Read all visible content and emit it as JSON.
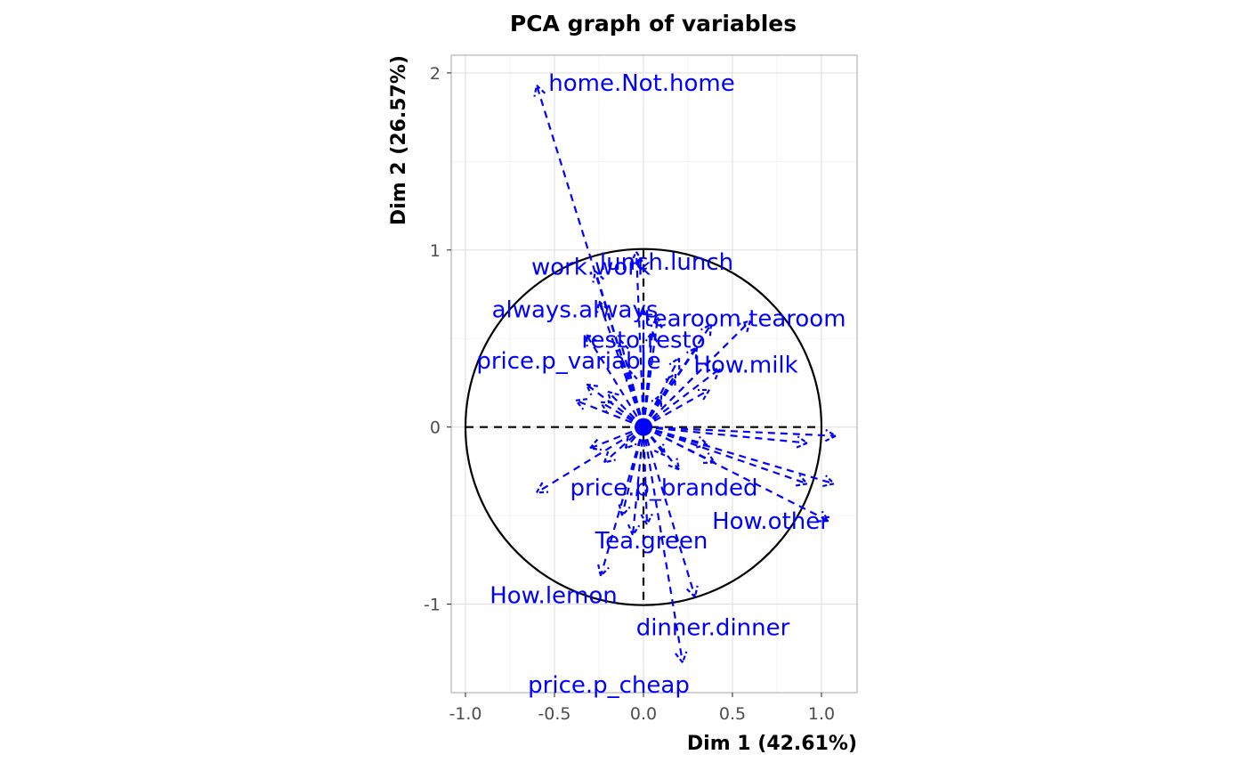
{
  "chart_data": {
    "type": "scatter",
    "title": "PCA graph of variables",
    "xlabel": "Dim 1 (42.61%)",
    "ylabel": "Dim 2 (26.57%)",
    "xlim": [
      -1.08,
      1.2
    ],
    "ylim": [
      -1.5,
      2.1
    ],
    "x_ticks": [
      -1.0,
      -0.5,
      0.0,
      0.5,
      1.0
    ],
    "x_tick_labels": [
      "-1.0",
      "-0.5",
      "0.0",
      "0.5",
      "1.0"
    ],
    "y_ticks": [
      -1,
      0,
      1,
      2
    ],
    "y_tick_labels": [
      "-1",
      "0",
      "1",
      "2"
    ],
    "grid": true,
    "correlation_circle": {
      "center": [
        0,
        0
      ],
      "radius": 1
    },
    "colors": {
      "variables": "#0000ff",
      "circle": "#000000",
      "grid": "#e0e0e0",
      "ticks": "#4d4d4d"
    },
    "labeled_variables": [
      {
        "name": "home.Not.home",
        "x": -0.6,
        "y": 1.93
      },
      {
        "name": "lunch.lunch",
        "x": -0.04,
        "y": 0.99
      },
      {
        "name": "work.work",
        "x": -0.27,
        "y": 0.88
      },
      {
        "name": "tearoom.tearoom",
        "x": 0.0,
        "y": 0.66
      },
      {
        "name": "always.always",
        "x": -0.25,
        "y": 0.71
      },
      {
        "name": "resto.resto",
        "x": 0.05,
        "y": 0.54
      },
      {
        "name": "How.milk",
        "x": 0.6,
        "y": 0.6
      },
      {
        "name": "price.p_variable",
        "x": -0.32,
        "y": 0.52
      },
      {
        "name": "price.p_branded",
        "x": -0.6,
        "y": -0.37
      },
      {
        "name": "How.other",
        "x": 1.04,
        "y": -0.53
      },
      {
        "name": "Tea.green",
        "x": -0.06,
        "y": -0.61
      },
      {
        "name": "How.lemon",
        "x": -0.24,
        "y": -0.84
      },
      {
        "name": "dinner.dinner",
        "x": 0.29,
        "y": -0.96
      },
      {
        "name": "price.p_cheap",
        "x": 0.22,
        "y": -1.33
      }
    ],
    "unlabeled_variables": [
      {
        "x": 1.08,
        "y": -0.05
      },
      {
        "x": 1.07,
        "y": -0.32
      },
      {
        "x": 0.92,
        "y": -0.09
      },
      {
        "x": 0.92,
        "y": -0.32
      },
      {
        "x": 0.38,
        "y": 0.58
      },
      {
        "x": 0.43,
        "y": 0.33
      },
      {
        "x": 0.37,
        "y": 0.21
      },
      {
        "x": 0.3,
        "y": 0.45
      },
      {
        "x": 0.2,
        "y": 0.39
      },
      {
        "x": 0.08,
        "y": 0.62
      },
      {
        "x": -0.13,
        "y": 0.49
      },
      {
        "x": -0.2,
        "y": 0.2
      },
      {
        "x": -0.32,
        "y": 0.24
      },
      {
        "x": -0.38,
        "y": 0.15
      },
      {
        "x": -0.24,
        "y": 0.14
      },
      {
        "x": -0.3,
        "y": -0.12
      },
      {
        "x": -0.22,
        "y": -0.2
      },
      {
        "x": -0.12,
        "y": -0.5
      },
      {
        "x": 0.02,
        "y": -0.55
      },
      {
        "x": 0.2,
        "y": -0.24
      },
      {
        "x": 0.4,
        "y": -0.2
      },
      {
        "x": 0.36,
        "y": -0.1
      },
      {
        "x": 0.18,
        "y": 0.3
      },
      {
        "x": 0.1,
        "y": 0.18
      },
      {
        "x": -0.08,
        "y": 0.32
      },
      {
        "x": -0.1,
        "y": -0.12
      },
      {
        "x": 0.12,
        "y": -0.16
      }
    ]
  }
}
